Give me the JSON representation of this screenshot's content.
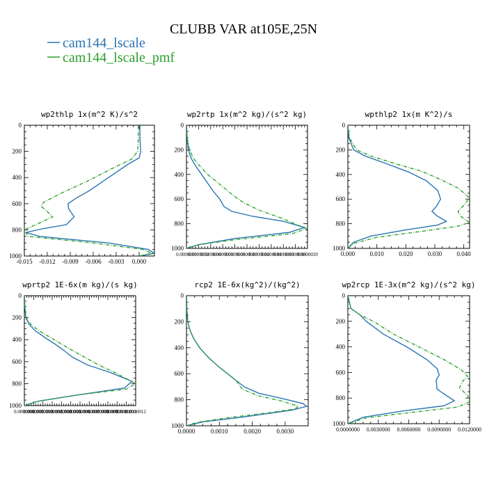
{
  "figure": {
    "title": "CLUBB VAR at105E,25N",
    "legend": [
      {
        "name": "cam144_lscale",
        "color": "#2874b2"
      },
      {
        "name": "cam144_lscale_pmf",
        "color": "#2ca02c"
      }
    ]
  },
  "chart_data": [
    {
      "type": "line",
      "title": "wp2thlp   1x(m^2 K)/s^2",
      "xlim": [
        -0.015,
        0.002
      ],
      "ylim": [
        1000,
        0
      ],
      "xticks": [
        -0.015,
        -0.012,
        -0.009,
        -0.006,
        -0.003,
        0.0
      ],
      "xtick_labels": [
        "-0.015",
        "-0.012",
        "-0.009",
        "-0.006",
        "-0.003",
        "0.000"
      ],
      "yticks": [
        0,
        200,
        400,
        600,
        800,
        1000
      ],
      "ytick_labels": [
        "0",
        "200",
        "400",
        "600",
        "800",
        "1000"
      ],
      "series": [
        {
          "name": "cam144_lscale",
          "color": "#2874b2",
          "dashed": false,
          "x": [
            0.0001,
            0.0001,
            0.0002,
            0.0,
            -0.0015,
            -0.004,
            -0.0065,
            -0.0083,
            -0.0093,
            -0.0092,
            -0.0085,
            -0.0095,
            -0.0125,
            -0.0148,
            -0.013,
            -0.004,
            0.0012,
            0.002,
            0.0
          ],
          "y": [
            0,
            100,
            200,
            250,
            300,
            400,
            500,
            560,
            600,
            640,
            700,
            760,
            790,
            820,
            850,
            900,
            950,
            980,
            1000
          ]
        },
        {
          "name": "cam144_lscale_pmf",
          "color": "#2ca02c",
          "dashed": true,
          "x": [
            -0.0001,
            -0.0001,
            -0.0002,
            -0.001,
            -0.0035,
            -0.0065,
            -0.0102,
            -0.0125,
            -0.0128,
            -0.012,
            -0.0113,
            -0.0135,
            -0.015,
            -0.0145,
            -0.006,
            0.0005,
            0.0017,
            0.0
          ],
          "y": [
            0,
            100,
            200,
            260,
            330,
            420,
            520,
            590,
            620,
            660,
            700,
            760,
            800,
            850,
            900,
            950,
            980,
            1000
          ]
        }
      ]
    },
    {
      "type": "line",
      "title": "wp2rtp  1x(m^2 kg)/(s^2 kg)",
      "xlim": [
        0,
        2e-06
      ],
      "ylim": [
        1000,
        0
      ],
      "xticks": [
        0,
        2e-07,
        4e-07,
        6e-07,
        8e-07,
        1e-06,
        1.2e-06,
        1.4e-06,
        1.6e-06,
        1.8e-06,
        2e-06
      ],
      "xtick_labels": [
        "0.0000000",
        "0.0000002",
        "0.0000004",
        "0.0000006",
        "0.0000008",
        "0.0000010",
        "0.0000012",
        "0.0000014",
        "0.0000016",
        "0.0000018",
        "0.0000020"
      ],
      "yticks": [
        0,
        200,
        400,
        600,
        800,
        1000
      ],
      "ytick_labels": [
        "0",
        "200",
        "400",
        "600",
        "800",
        "1000"
      ],
      "series": [
        {
          "name": "cam144_lscale",
          "color": "#2874b2",
          "dashed": false,
          "x": [
            0,
            1e-08,
            3e-08,
            8e-08,
            1.5e-07,
            2.5e-07,
            3.5e-07,
            4.5e-07,
            5.5e-07,
            6.2e-07,
            7.5e-07,
            1.1e-06,
            1.6e-06,
            1.95e-06,
            1.7e-06,
            8e-07,
            2e-07,
            0
          ],
          "y": [
            0,
            100,
            200,
            270,
            330,
            400,
            470,
            540,
            600,
            660,
            700,
            740,
            780,
            830,
            870,
            920,
            970,
            1000
          ]
        },
        {
          "name": "cam144_lscale_pmf",
          "color": "#2ca02c",
          "dashed": true,
          "x": [
            0,
            1e-08,
            5e-08,
            1.2e-07,
            2.2e-07,
            3.5e-07,
            5e-07,
            6.5e-07,
            8e-07,
            9.5e-07,
            1.2e-06,
            1.6e-06,
            1.98e-06,
            1.75e-06,
            8e-07,
            2e-07,
            0
          ],
          "y": [
            0,
            100,
            200,
            270,
            330,
            400,
            460,
            520,
            580,
            630,
            690,
            760,
            840,
            880,
            930,
            970,
            1000
          ]
        }
      ]
    },
    {
      "type": "line",
      "title": "wpthlp2  1x(m K^2)/s",
      "xlim": [
        0,
        0.042
      ],
      "ylim": [
        1000,
        0
      ],
      "xticks": [
        0,
        0.01,
        0.02,
        0.03,
        0.04
      ],
      "xtick_labels": [
        "0.000",
        "0.010",
        "0.020",
        "0.030",
        "0.040"
      ],
      "yticks": [
        0,
        200,
        400,
        600,
        800,
        1000
      ],
      "ytick_labels": [
        "0",
        "200",
        "400",
        "600",
        "800",
        "1000"
      ],
      "series": [
        {
          "name": "cam144_lscale",
          "color": "#2874b2",
          "dashed": false,
          "x": [
            0,
            0.0003,
            0.002,
            0.006,
            0.013,
            0.021,
            0.027,
            0.031,
            0.032,
            0.0305,
            0.029,
            0.031,
            0.034,
            0.031,
            0.02,
            0.008,
            0.002,
            0
          ],
          "y": [
            0,
            100,
            200,
            250,
            310,
            380,
            450,
            530,
            600,
            660,
            700,
            740,
            780,
            810,
            850,
            900,
            950,
            1000
          ]
        },
        {
          "name": "cam144_lscale_pmf",
          "color": "#2ca02c",
          "dashed": true,
          "x": [
            0,
            0.0005,
            0.003,
            0.008,
            0.016,
            0.025,
            0.032,
            0.038,
            0.042,
            0.04,
            0.038,
            0.039,
            0.042,
            0.038,
            0.026,
            0.01,
            0.002,
            0
          ],
          "y": [
            0,
            100,
            200,
            250,
            310,
            370,
            440,
            510,
            590,
            650,
            700,
            740,
            790,
            820,
            860,
            910,
            960,
            1000
          ]
        }
      ]
    },
    {
      "type": "line",
      "title": "wprtp2  1E-6x(m kg)/(s kg)",
      "xlim": [
        0,
        1.2e-06
      ],
      "ylim": [
        1000,
        0
      ],
      "xticks": [
        0,
        1e-07,
        2e-07,
        3e-07,
        4e-07,
        5e-07,
        6e-07,
        7e-07,
        8e-07,
        9e-07,
        1e-06,
        1.1e-06,
        1.2e-06
      ],
      "xtick_labels": [
        "0.0000000",
        "0.0000001",
        "0.0000002",
        "0.0000003",
        "0.0000004",
        "0.0000005",
        "0.0000006",
        "0.0000007",
        "0.0000008",
        "0.0000009",
        "0.0000010",
        "0.0000011",
        "0.0000012"
      ],
      "yticks": [
        0,
        200,
        400,
        600,
        800,
        1000
      ],
      "ytick_labels": [
        "0",
        "200",
        "400",
        "600",
        "800",
        "1000"
      ],
      "series": [
        {
          "name": "cam144_lscale",
          "color": "#2874b2",
          "dashed": false,
          "x": [
            0,
            5e-09,
            1.5e-08,
            5e-08,
            1.2e-07,
            2.2e-07,
            3.3e-07,
            4.3e-07,
            5.2e-07,
            6.8e-07,
            9.3e-07,
            1.16e-06,
            1.08e-06,
            6e-07,
            1.5e-07,
            0
          ],
          "y": [
            0,
            100,
            200,
            260,
            320,
            380,
            440,
            500,
            560,
            630,
            700,
            780,
            840,
            900,
            960,
            1000
          ]
        },
        {
          "name": "cam144_lscale_pmf",
          "color": "#2ca02c",
          "dashed": true,
          "x": [
            0,
            5e-09,
            2e-08,
            7e-08,
            1.6e-07,
            2.8e-07,
            4e-07,
            5.2e-07,
            6.5e-07,
            8e-07,
            1e-06,
            1.2e-06,
            1.1e-06,
            6e-07,
            1.5e-07,
            0
          ],
          "y": [
            0,
            100,
            200,
            260,
            320,
            380,
            440,
            500,
            560,
            630,
            710,
            800,
            850,
            900,
            960,
            1000
          ]
        }
      ]
    },
    {
      "type": "line",
      "title": "rcp2  1E-6x(kg^2)/(kg^2)",
      "xlim": [
        0,
        0.0037
      ],
      "ylim": [
        1000,
        0
      ],
      "xticks": [
        0,
        0.001,
        0.002,
        0.003
      ],
      "xtick_labels": [
        "0.0000",
        "0.0010",
        "0.0020",
        "0.0030"
      ],
      "yticks": [
        0,
        200,
        400,
        600,
        800,
        1000
      ],
      "ytick_labels": [
        "0",
        "200",
        "400",
        "600",
        "800",
        "1000"
      ],
      "series": [
        {
          "name": "cam144_lscale",
          "color": "#2874b2",
          "dashed": false,
          "x": [
            0,
            1e-05,
            4e-05,
            0.0001,
            0.00022,
            0.0004,
            0.00065,
            0.00095,
            0.00125,
            0.0015,
            0.00175,
            0.0022,
            0.0029,
            0.00355,
            0.00365,
            0.0032,
            0.0018,
            0.0005,
            0
          ],
          "y": [
            0,
            100,
            200,
            260,
            330,
            400,
            470,
            540,
            600,
            650,
            700,
            750,
            790,
            830,
            850,
            880,
            930,
            970,
            1000
          ]
        },
        {
          "name": "cam144_lscale_pmf",
          "color": "#2ca02c",
          "dashed": true,
          "x": [
            0,
            1e-05,
            4e-05,
            0.0001,
            0.00022,
            0.0004,
            0.00065,
            0.00095,
            0.00125,
            0.0015,
            0.0017,
            0.0022,
            0.0029,
            0.0034,
            0.0033,
            0.0025,
            0.0012,
            0.0003,
            0
          ],
          "y": [
            0,
            100,
            200,
            260,
            330,
            400,
            470,
            540,
            600,
            650,
            720,
            770,
            810,
            850,
            870,
            900,
            940,
            975,
            1000
          ]
        }
      ]
    },
    {
      "type": "line",
      "title": "wp2rcp  1E-3x(m^2 kg)/(s^2 kg)",
      "xlim": [
        0,
        0.012
      ],
      "ylim": [
        1000,
        0
      ],
      "xticks": [
        0,
        0.003,
        0.006,
        0.009,
        0.012
      ],
      "xtick_labels": [
        "0.0000000",
        "0.0030000",
        "0.0060000",
        "0.0090000",
        "0.0120000"
      ],
      "yticks": [
        0,
        200,
        400,
        600,
        800,
        1000
      ],
      "ytick_labels": [
        "0",
        "200",
        "400",
        "600",
        "800",
        "1000"
      ],
      "series": [
        {
          "name": "cam144_lscale",
          "color": "#2874b2",
          "dashed": false,
          "x": [
            0,
            0.0003,
            0.0012,
            0.0018,
            0.0035,
            0.0058,
            0.0078,
            0.0088,
            0.009,
            0.0087,
            0.0088,
            0.0097,
            0.0105,
            0.0095,
            0.0055,
            0.0015,
            0
          ],
          "y": [
            0,
            100,
            150,
            200,
            300,
            400,
            500,
            570,
            620,
            660,
            730,
            780,
            820,
            860,
            900,
            950,
            1000
          ]
        },
        {
          "name": "cam144_lscale_pmf",
          "color": "#2ca02c",
          "dashed": true,
          "x": [
            0,
            0.0003,
            0.0012,
            0.0025,
            0.0045,
            0.007,
            0.0095,
            0.0112,
            0.0118,
            0.0113,
            0.011,
            0.0118,
            0.012,
            0.0108,
            0.0065,
            0.0018,
            0
          ],
          "y": [
            0,
            100,
            150,
            200,
            300,
            400,
            500,
            580,
            630,
            670,
            720,
            780,
            830,
            870,
            910,
            955,
            1000
          ]
        }
      ]
    }
  ]
}
